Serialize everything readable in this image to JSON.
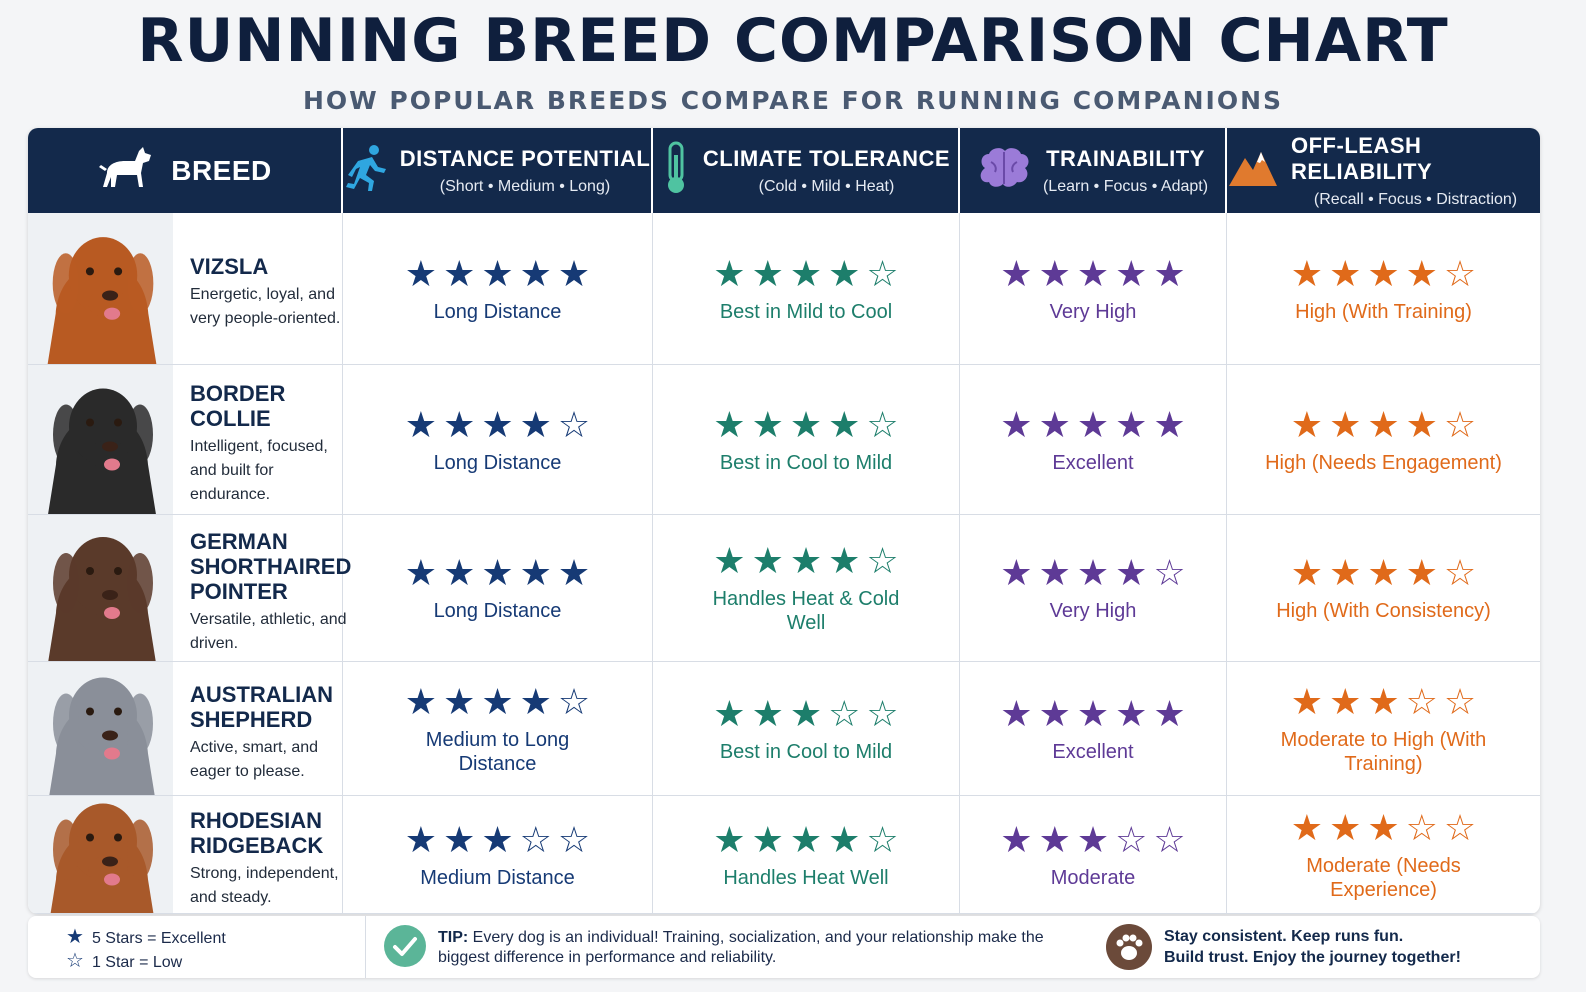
{
  "title": "RUNNING BREED COMPARISON CHART",
  "subtitle": "HOW POPULAR BREEDS COMPARE FOR RUNNING COMPANIONS",
  "columns": [
    {
      "label": "BREED",
      "icon": "dog-icon"
    },
    {
      "label": "DISTANCE POTENTIAL",
      "sub": "(Short • Medium • Long)",
      "icon": "runner-icon"
    },
    {
      "label": "CLIMATE TOLERANCE",
      "sub": "(Cold • Mild • Heat)",
      "icon": "thermometer-icon"
    },
    {
      "label": "TRAINABILITY",
      "sub": "(Learn • Focus • Adapt)",
      "icon": "brain-icon"
    },
    {
      "label": "OFF-LEASH RELIABILITY",
      "sub": "(Recall • Focus • Distraction)",
      "icon": "mountain-icon"
    }
  ],
  "colors": {
    "distance": "#163a75",
    "climate": "#1d7e6b",
    "trainability": "#5e3a96",
    "offleash": "#e06a1a"
  },
  "breeds": [
    {
      "name": "VIZSLA",
      "desc": "Energetic, loyal, and very people-oriented.",
      "distance": {
        "rating": 5,
        "label": "Long Distance"
      },
      "climate": {
        "rating": 4,
        "label": "Best in Mild to Cool"
      },
      "trainability": {
        "rating": 5,
        "label": "Very High"
      },
      "offleash": {
        "rating": 4,
        "label": "High (With Training)"
      }
    },
    {
      "name": "BORDER COLLIE",
      "desc": "Intelligent, focused, and built for endurance.",
      "distance": {
        "rating": 4,
        "label": "Long Distance"
      },
      "climate": {
        "rating": 4,
        "label": "Best in Cool to Mild"
      },
      "trainability": {
        "rating": 5,
        "label": "Excellent"
      },
      "offleash": {
        "rating": 4,
        "label": "High (Needs Engagement)"
      }
    },
    {
      "name": "GERMAN SHORTHAIRED POINTER",
      "desc": "Versatile, athletic, and driven.",
      "distance": {
        "rating": 5,
        "label": "Long Distance"
      },
      "climate": {
        "rating": 4,
        "label": "Handles Heat & Cold Well"
      },
      "trainability": {
        "rating": 4,
        "label": "Very High"
      },
      "offleash": {
        "rating": 4,
        "label": "High (With Consistency)"
      }
    },
    {
      "name": "AUSTRALIAN SHEPHERD",
      "desc": "Active, smart, and eager to please.",
      "distance": {
        "rating": 4,
        "label": "Medium to Long Distance"
      },
      "climate": {
        "rating": 3,
        "label": "Best in Cool to Mild"
      },
      "trainability": {
        "rating": 5,
        "label": "Excellent"
      },
      "offleash": {
        "rating": 3,
        "label": "Moderate to High (With Training)"
      }
    },
    {
      "name": "RHODESIAN RIDGEBACK",
      "desc": "Strong, independent, and steady.",
      "distance": {
        "rating": 3,
        "label": "Medium Distance"
      },
      "climate": {
        "rating": 4,
        "label": "Handles Heat Well"
      },
      "trainability": {
        "rating": 3,
        "label": "Moderate"
      },
      "offleash": {
        "rating": 3,
        "label": "Moderate (Needs Experience)"
      }
    }
  ],
  "legend": {
    "five": "5 Stars = Excellent",
    "one": "1 Star  = Low"
  },
  "tip": {
    "lead": "TIP:",
    "text": "Every dog is an individual! Training, socialization, and your relationship make the biggest difference in performance and reliability."
  },
  "closing": {
    "line1": "Stay consistent. Keep runs fun.",
    "line2": "Build trust. Enjoy the journey together!"
  }
}
